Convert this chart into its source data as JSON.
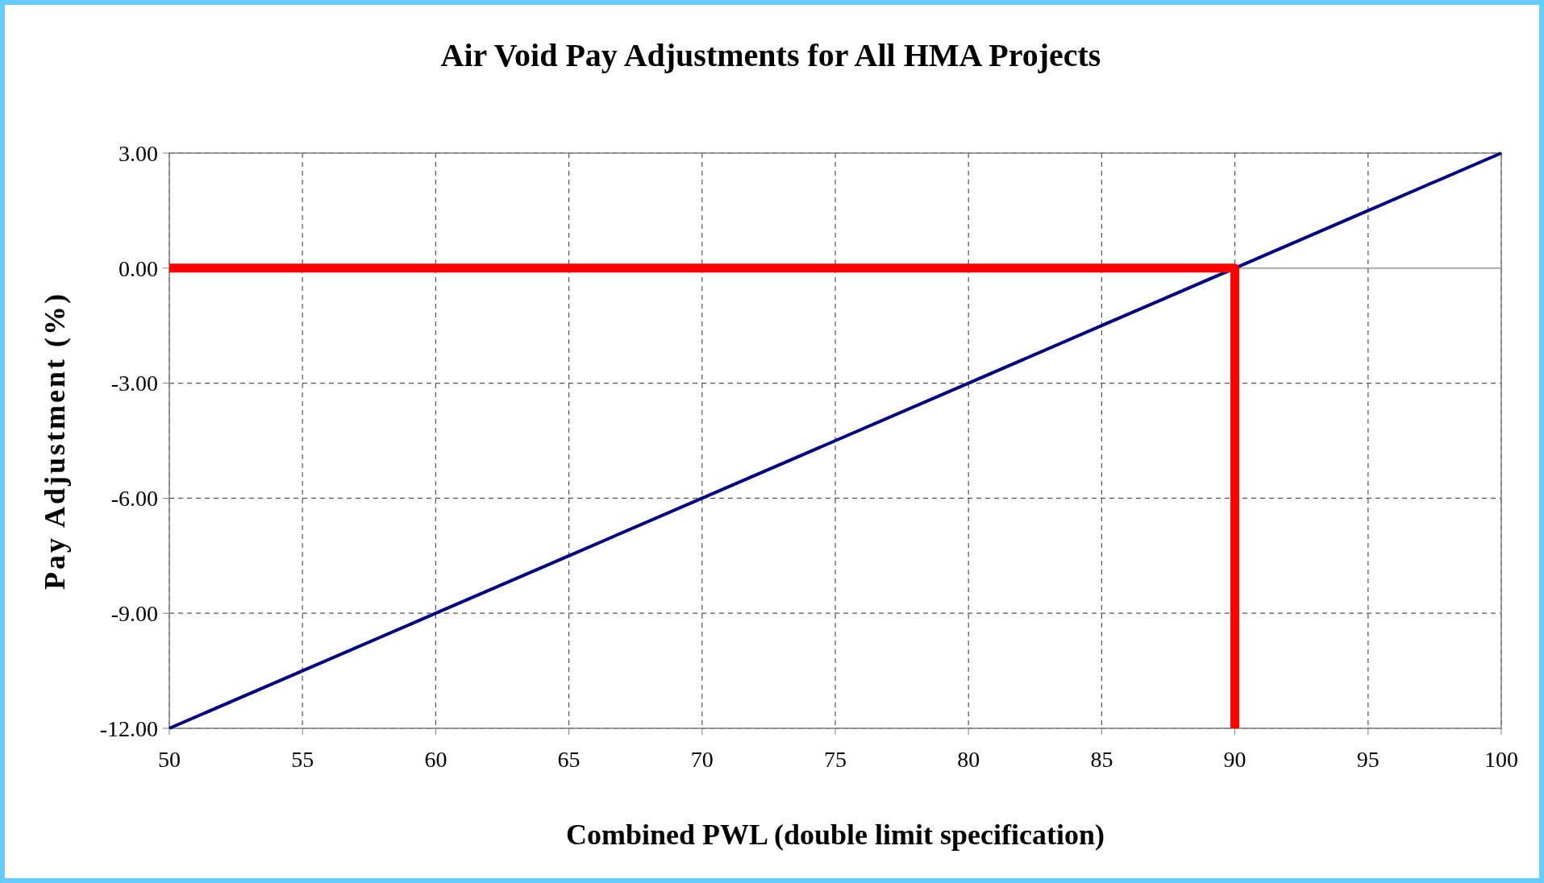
{
  "chart_data": {
    "type": "line",
    "title": "Air Void Pay Adjustments for All HMA Projects",
    "xlabel": "Combined PWL (double limit specification)",
    "ylabel": "Pay Adjustment (%)",
    "xlim": [
      50,
      100
    ],
    "xticks": [
      50,
      55,
      60,
      65,
      70,
      75,
      80,
      85,
      90,
      95,
      100
    ],
    "ylim": [
      -12,
      3
    ],
    "yticks": [
      {
        "value": -12,
        "label": "-12.00"
      },
      {
        "value": -9,
        "label": "-9.00"
      },
      {
        "value": -6,
        "label": "-6.00"
      },
      {
        "value": -3,
        "label": "-3.00"
      },
      {
        "value": 0,
        "label": "0.00"
      },
      {
        "value": 3,
        "label": "3.00"
      }
    ],
    "grid": true,
    "marker": "none",
    "line_style": "solid",
    "series": [
      {
        "color": "#000080",
        "x": [
          50,
          55,
          60,
          65,
          70,
          75,
          80,
          85,
          90,
          95,
          100
        ],
        "values": [
          -12,
          -10.5,
          -9,
          -7.5,
          -6,
          -4.5,
          -3,
          -1.5,
          0,
          1.5,
          3
        ]
      },
      {
        "color": "#ff0000",
        "x": [
          50,
          90,
          90
        ],
        "values": [
          0,
          0,
          -12
        ]
      }
    ]
  }
}
